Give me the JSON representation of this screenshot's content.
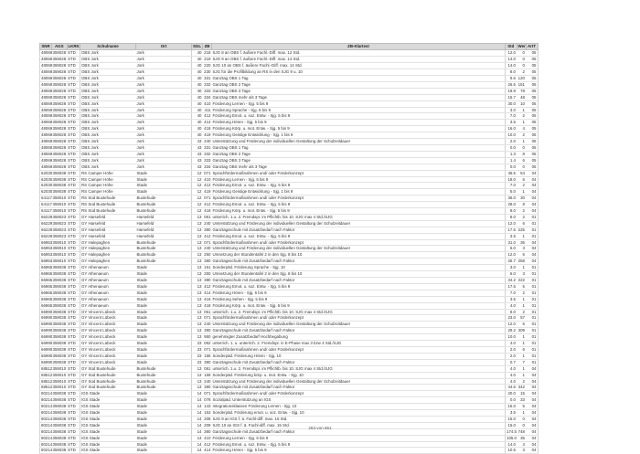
{
  "columns": [
    "SNR",
    "AGS",
    "LKRKZ",
    "Schulname",
    "Ort",
    "SGL",
    "ZB",
    "ZB-Klartext",
    "Std",
    "Wert",
    "ArtT"
  ],
  "rows": [
    [
      "48069",
      "359028",
      "STD",
      "OBS Jork",
      "Jork",
      "40",
      "218",
      "SJG 8 an OBS f. äußere Fachl.-Diff. max. 12 Std.",
      "12.0",
      "0",
      "05"
    ],
    [
      "48069",
      "359028",
      "STD",
      "OBS Jork",
      "Jork",
      "40",
      "219",
      "SJG 9 an OBS f. äußere Fachl.-Diff. max. 14 Std.",
      "14.0",
      "0",
      "05"
    ],
    [
      "48069",
      "359028",
      "STD",
      "OBS Jork",
      "Jork",
      "40",
      "220",
      "SJG 10 an OBS f. äußere Fachl.-Diff. max. 14 Std.",
      "14.0",
      "0",
      "05"
    ],
    [
      "48069",
      "359028",
      "STD",
      "OBS Jork",
      "Jork",
      "40",
      "230",
      "SJG für die Profilbildung an RS in den SJG 9 u. 10",
      "8.0",
      "2",
      "05"
    ],
    [
      "48069",
      "359028",
      "STD",
      "OBS Jork",
      "Jork",
      "40",
      "331",
      "Ganztag OBS 1 Tag",
      "9.6",
      "120",
      "05"
    ],
    [
      "48069",
      "359028",
      "STD",
      "OBS Jork",
      "Jork",
      "40",
      "332",
      "Ganztag OBS 2 Tage",
      "26.5",
      "151",
      "05"
    ],
    [
      "48069",
      "359028",
      "STD",
      "OBS Jork",
      "Jork",
      "40",
      "333",
      "Ganztag OBS 3 Tage",
      "19.9",
      "78",
      "05"
    ],
    [
      "48069",
      "359028",
      "STD",
      "OBS Jork",
      "Jork",
      "40",
      "334",
      "Ganztag OBS mehr als 3 Tage",
      "15.7",
      "48",
      "05"
    ],
    [
      "48069",
      "359028",
      "STD",
      "OBS Jork",
      "Jork",
      "40",
      "410",
      "Förderung Lernen  - Sjg. 5 bis 9",
      "30.0",
      "10",
      "05"
    ],
    [
      "48069",
      "359028",
      "STD",
      "OBS Jork",
      "Jork",
      "40",
      "411",
      "Förderung Sprache  - Sjg. 5 bis 9",
      "3.0",
      "1",
      "05"
    ],
    [
      "48069",
      "359028",
      "STD",
      "OBS Jork",
      "Jork",
      "40",
      "412",
      "Förderung Emot. u. soz. Entw.  - Sjg. 5 bis 9",
      "7.0",
      "2",
      "05"
    ],
    [
      "48069",
      "359028",
      "STD",
      "OBS Jork",
      "Jork",
      "40",
      "414",
      "Förderung Hören  - Sjg. 5 bis 9",
      "3.5",
      "1",
      "05"
    ],
    [
      "48069",
      "359028",
      "STD",
      "OBS Jork",
      "Jork",
      "40",
      "418",
      "Förderung Körp. u. mot. Entw.  - Sjg. 5 bis 9",
      "16.0",
      "4",
      "05"
    ],
    [
      "48069",
      "359028",
      "STD",
      "OBS Jork",
      "Jork",
      "40",
      "419",
      "Förderung Geistige Entwicklung - Sjg. 1 bis 9",
      "10.0",
      "2",
      "05"
    ],
    [
      "48069",
      "359028",
      "STD",
      "OBS Jork",
      "Jork",
      "43",
      "240",
      "Unterstützung und Förderung der individuellen Gestaltung der Schulzeitdauer",
      "2.0",
      "1",
      "05"
    ],
    [
      "48069",
      "359028",
      "STD",
      "OBS Jork",
      "Jork",
      "43",
      "331",
      "Ganztag OBS 1 Tag",
      "0.0",
      "0",
      "05"
    ],
    [
      "48069",
      "359028",
      "STD",
      "OBS Jork",
      "Jork",
      "43",
      "332",
      "Ganztag OBS 2 Tage",
      "1.3",
      "8",
      "05"
    ],
    [
      "48069",
      "359028",
      "STD",
      "OBS Jork",
      "Jork",
      "43",
      "333",
      "Ganztag OBS 3 Tage",
      "1.4",
      "6",
      "05"
    ],
    [
      "48069",
      "359028",
      "STD",
      "OBS Jork",
      "Jork",
      "43",
      "334",
      "Ganztag OBS mehr als 3 Tage",
      "0.0",
      "0",
      "05"
    ],
    [
      "62030",
      "359038",
      "STD",
      "RS Camper Höhe",
      "Stade",
      "12",
      "071",
      "Sprachfördermaßnahmen und/ oder Förderkonzept",
      "46.5",
      "54",
      "04"
    ],
    [
      "62030",
      "359038",
      "STD",
      "RS Camper Höhe",
      "Stade",
      "12",
      "410",
      "Förderung Lernen  - Sjg. 5 bis 9",
      "18.0",
      "6",
      "04"
    ],
    [
      "62030",
      "359038",
      "STD",
      "RS Camper Höhe",
      "Stade",
      "12",
      "412",
      "Förderung Emot. u. soz. Entw.  - Sjg. 5 bis 9",
      "7.0",
      "2",
      "04"
    ],
    [
      "62030",
      "359038",
      "STD",
      "RS Camper Höhe",
      "Stade",
      "12",
      "419",
      "Förderung Geistige Entwicklung - Sjg. 1 bis 9",
      "5.0",
      "1",
      "04"
    ],
    [
      "64117",
      "359010",
      "STD",
      "RS Süd Buxtehude",
      "Buxtehude",
      "12",
      "071",
      "Sprachfördermaßnahmen und/ oder Förderkonzept",
      "36.0",
      "30",
      "04"
    ],
    [
      "64117",
      "359010",
      "STD",
      "RS Süd Buxtehude",
      "Buxtehude",
      "12",
      "412",
      "Förderung Emot. u. soz. Entw.  - Sjg. 5 bis 9",
      "28.0",
      "8",
      "04"
    ],
    [
      "64117",
      "359010",
      "STD",
      "RS Süd Buxtehude",
      "Buxtehude",
      "12",
      "418",
      "Förderung Körp. u. mot. Entw.  - Sjg. 5 bis 9",
      "8.0",
      "2",
      "04"
    ],
    [
      "66229",
      "359023",
      "STD",
      "GY Harsefeld",
      "Harsefeld",
      "13",
      "061",
      "unterrich. 1.u. 2. Fremdspr. im Pflichtb. bis 10. SJG max 4 Std./SJG",
      "8.0",
      "2",
      "01"
    ],
    [
      "66229",
      "359023",
      "STD",
      "GY Harsefeld",
      "Harsefeld",
      "13",
      "240",
      "Unterstützung und Förderung der individuellen Gestaltung der Schulzeitdauer",
      "12.0",
      "6",
      "01"
    ],
    [
      "66229",
      "359023",
      "STD",
      "GY Harsefeld",
      "Harsefeld",
      "13",
      "380",
      "Ganztagsschule mit Zusatzbedarf nach Faktor",
      "17.5",
      "225",
      "01"
    ],
    [
      "66229",
      "359023",
      "STD",
      "GY Harsefeld",
      "Harsefeld",
      "13",
      "412",
      "Förderung Emot. u. soz. Entw.  - Sjg. 5 bis 9",
      "3.5",
      "1",
      "01"
    ],
    [
      "66953",
      "359010",
      "STD",
      "GY Halepaghen",
      "Buxtehude",
      "13",
      "071",
      "Sprachfördermaßnahmen und/ oder Förderkonzept",
      "31.0",
      "35",
      "04"
    ],
    [
      "66953",
      "359010",
      "STD",
      "GY Halepaghen",
      "Buxtehude",
      "13",
      "240",
      "Unterstützung und Förderung der individuellen Gestaltung der Schulzeitdauer",
      "6.0",
      "3",
      "04"
    ],
    [
      "66953",
      "359010",
      "STD",
      "GY Halepaghen",
      "Buxtehude",
      "13",
      "250",
      "Umsetzung der Stundentafel 2 in den Sjg. 8 bis 10",
      "12.0",
      "6",
      "04"
    ],
    [
      "66953",
      "359010",
      "STD",
      "GY Halepaghen",
      "Buxtehude",
      "13",
      "380",
      "Ganztagsschule mit Zusatzbedarf nach Faktor",
      "26.7",
      "258",
      "04"
    ],
    [
      "66965",
      "359038",
      "STD",
      "GY Athenaeum",
      "Stade",
      "13",
      "151",
      "Sonderpäd. Förderung Sprache - Sjg. 10",
      "3.0",
      "1",
      "01"
    ],
    [
      "66965",
      "359038",
      "STD",
      "GY Athenaeum",
      "Stade",
      "13",
      "250",
      "Umsetzung der Stundentafel 2 in den Sjg. 8 bis 10",
      "6.0",
      "3",
      "01"
    ],
    [
      "66965",
      "359038",
      "STD",
      "GY Athenaeum",
      "Stade",
      "13",
      "380",
      "Ganztagsschule mit Zusatzbedarf nach Faktor",
      "34.2",
      "222",
      "01"
    ],
    [
      "66965",
      "359038",
      "STD",
      "GY Athenaeum",
      "Stade",
      "13",
      "412",
      "Förderung Emot. u. soz. Entw.  - Sjg. 5 bis 9",
      "17.5",
      "5",
      "01"
    ],
    [
      "66965",
      "359038",
      "STD",
      "GY Athenaeum",
      "Stade",
      "13",
      "414",
      "Förderung Hören  - Sjg. 5 bis 9",
      "7.0",
      "2",
      "01"
    ],
    [
      "66965",
      "359038",
      "STD",
      "GY Athenaeum",
      "Stade",
      "13",
      "416",
      "Förderung Sehen  - Sjg. 5 bis 9",
      "3.5",
      "1",
      "01"
    ],
    [
      "66965",
      "359038",
      "STD",
      "GY Athenaeum",
      "Stade",
      "13",
      "418",
      "Förderung Körp. u. mot. Entw.  - Sjg. 5 bis 9",
      "4.0",
      "1",
      "01"
    ],
    [
      "66990",
      "359038",
      "STD",
      "GY Vincent Lübeck",
      "Stade",
      "13",
      "061",
      "unterrich. 1.u. 2. Fremdspr. im Pflichtb. bis 10. SJG max 4 Std./SJG",
      "8.0",
      "2",
      "01"
    ],
    [
      "66990",
      "359038",
      "STD",
      "GY Vincent Lübeck",
      "Stade",
      "13",
      "071",
      "Sprachfördermaßnahmen und/ oder Förderkonzept",
      "23.0",
      "57",
      "01"
    ],
    [
      "66990",
      "359038",
      "STD",
      "GY Vincent Lübeck",
      "Stade",
      "13",
      "240",
      "Unterstützung und Förderung der individuellen Gestaltung der Schulzeitdauer",
      "12.0",
      "6",
      "01"
    ],
    [
      "66990",
      "359038",
      "STD",
      "GY Vincent Lübeck",
      "Stade",
      "13",
      "380",
      "Ganztagsschule mit Zusatzbedarf nach Faktor",
      "29.2",
      "309",
      "01"
    ],
    [
      "66990",
      "359038",
      "STD",
      "GY Vincent Lübeck",
      "Stade",
      "13",
      "950",
      "genehmigter Zusatzbedarf Hochbegabung",
      "10.0",
      "1",
      "01"
    ],
    [
      "66990",
      "359038",
      "STD",
      "GY Vincent Lübeck",
      "Stade",
      "23",
      "062",
      "unterrich. 1. u. unterrich. 2. Fremdspr. in E-Phase  max 3 bzw 4 Std./SJG",
      "4.0",
      "1",
      "01"
    ],
    [
      "66990",
      "359038",
      "STD",
      "GY Vincent Lübeck",
      "Stade",
      "23",
      "071",
      "Sprachfördermaßnahmen und/ oder Förderkonzept",
      "2.0",
      "6",
      "01"
    ],
    [
      "66990",
      "359038",
      "STD",
      "GY Vincent Lübeck",
      "Stade",
      "23",
      "155",
      "Sonderpäd. Förderung Hören - Sjg. 10",
      "2.0",
      "1",
      "01"
    ],
    [
      "66990",
      "359038",
      "STD",
      "GY Vincent Lübeck",
      "Stade",
      "23",
      "380",
      "Ganztagsschule mit Zusatzbedarf nach Faktor",
      "0.7",
      "7",
      "01"
    ],
    [
      "68512",
      "359010",
      "STD",
      "GY Süd Buxtehude",
      "Buxtehude",
      "13",
      "061",
      "unterrich. 1.u. 2. Fremdspr. im Pflichtb. bis 10. SJG max 4 Std./SJG",
      "4.0",
      "1",
      "04"
    ],
    [
      "68512",
      "359010",
      "STD",
      "GY Süd Buxtehude",
      "Buxtehude",
      "13",
      "159",
      "Sonderpäd. Förderung körp. u. mot. Entw.  - Sjg. 10",
      "4.0",
      "1",
      "04"
    ],
    [
      "68512",
      "359010",
      "STD",
      "GY Süd Buxtehude",
      "Buxtehude",
      "13",
      "240",
      "Unterstützung und Förderung der individuellen Gestaltung der Schulzeitdauer",
      "4.0",
      "2",
      "04"
    ],
    [
      "68512",
      "359010",
      "STD",
      "GY Süd Buxtehude",
      "Buxtehude",
      "13",
      "380",
      "Ganztagsschule mit Zusatzbedarf nach Faktor",
      "44.6",
      "342",
      "04"
    ],
    [
      "80214",
      "359038",
      "STD",
      "IGS Stade",
      "Stade",
      "14",
      "071",
      "Sprachfördermaßnahmen und/ oder Förderkonzept",
      "20.0",
      "15",
      "04"
    ],
    [
      "80214",
      "359038",
      "STD",
      "IGS Stade",
      "Stade",
      "14",
      "078",
      "Sozialpäd. Unterstützung an IGS",
      "0.0",
      "33",
      "04"
    ],
    [
      "80214",
      "359038",
      "STD",
      "IGS Stade",
      "Stade",
      "14",
      "143",
      "Integrationsklassen  Förderung Lernen - Sjg. 10",
      "15.0",
      "5",
      "04"
    ],
    [
      "80214",
      "359038",
      "STD",
      "IGS Stade",
      "Stade",
      "14",
      "153",
      "Sonderpäd. Förderung emot. u. soz. Entw. - Sjg. 10",
      "3.5",
      "1",
      "04"
    ],
    [
      "80214",
      "359038",
      "STD",
      "IGS Stade",
      "Stade",
      "14",
      "208",
      "SJG 9 an IGS f. ä. Fachl-diff. max. 15 Std.",
      "15.0",
      "0",
      "04"
    ],
    [
      "80214",
      "359038",
      "STD",
      "IGS Stade",
      "Stade",
      "14",
      "209",
      "SJG 10 an IGS f. ä. Fachl-diff. max. 15 Std.",
      "15.0",
      "0",
      "04"
    ],
    [
      "80214",
      "359038",
      "STD",
      "IGS Stade",
      "Stade",
      "14",
      "380",
      "Ganztagsschule mit Zusatzbedarf nach Faktor",
      "174.5",
      "748",
      "04"
    ],
    [
      "80214",
      "359038",
      "STD",
      "IGS Stade",
      "Stade",
      "14",
      "410",
      "Förderung Lernen  - Sjg. 5 bis 9",
      "105.0",
      "35",
      "04"
    ],
    [
      "80214",
      "359038",
      "STD",
      "IGS Stade",
      "Stade",
      "14",
      "412",
      "Förderung Emot. u. soz. Entw.  - Sjg. 5 bis 9",
      "14.0",
      "4",
      "04"
    ],
    [
      "80214",
      "359038",
      "STD",
      "IGS Stade",
      "Stade",
      "14",
      "414",
      "Förderung Hören  - Sjg. 5 bis 9",
      "10.5",
      "3",
      "04"
    ]
  ],
  "footer": {
    "page_label": "263 von 651"
  }
}
